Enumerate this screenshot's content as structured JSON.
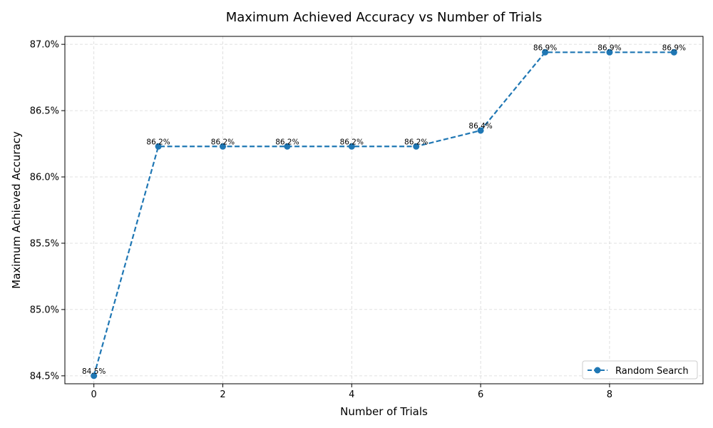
{
  "chart_data": {
    "type": "line",
    "title": "Maximum Achieved Accuracy vs Number of Trials",
    "xlabel": "Number of Trials",
    "ylabel": "Maximum Achieved Accuracy",
    "xlim": [
      -0.45,
      9.45
    ],
    "ylim": [
      84.44,
      87.06
    ],
    "xticks": [
      0,
      2,
      4,
      6,
      8
    ],
    "xtick_labels": [
      "0",
      "2",
      "4",
      "6",
      "8"
    ],
    "yticks": [
      84.5,
      85.0,
      85.5,
      86.0,
      86.5,
      87.0
    ],
    "ytick_labels": [
      "84.5%",
      "85.0%",
      "85.5%",
      "86.0%",
      "86.5%",
      "87.0%"
    ],
    "grid": true,
    "legend_position": "lower-right",
    "series": [
      {
        "name": "Random Search",
        "color": "#1f77b4",
        "line_style": "dashed",
        "marker": "circle",
        "x": [
          0,
          1,
          2,
          3,
          4,
          5,
          6,
          7,
          8,
          9
        ],
        "y": [
          84.5,
          86.23,
          86.23,
          86.23,
          86.23,
          86.23,
          86.35,
          86.94,
          86.94,
          86.94
        ],
        "labels": [
          "84.5%",
          "86.2%",
          "86.2%",
          "86.2%",
          "86.2%",
          "86.2%",
          "86.4%",
          "86.9%",
          "86.9%",
          "86.9%"
        ]
      }
    ]
  }
}
